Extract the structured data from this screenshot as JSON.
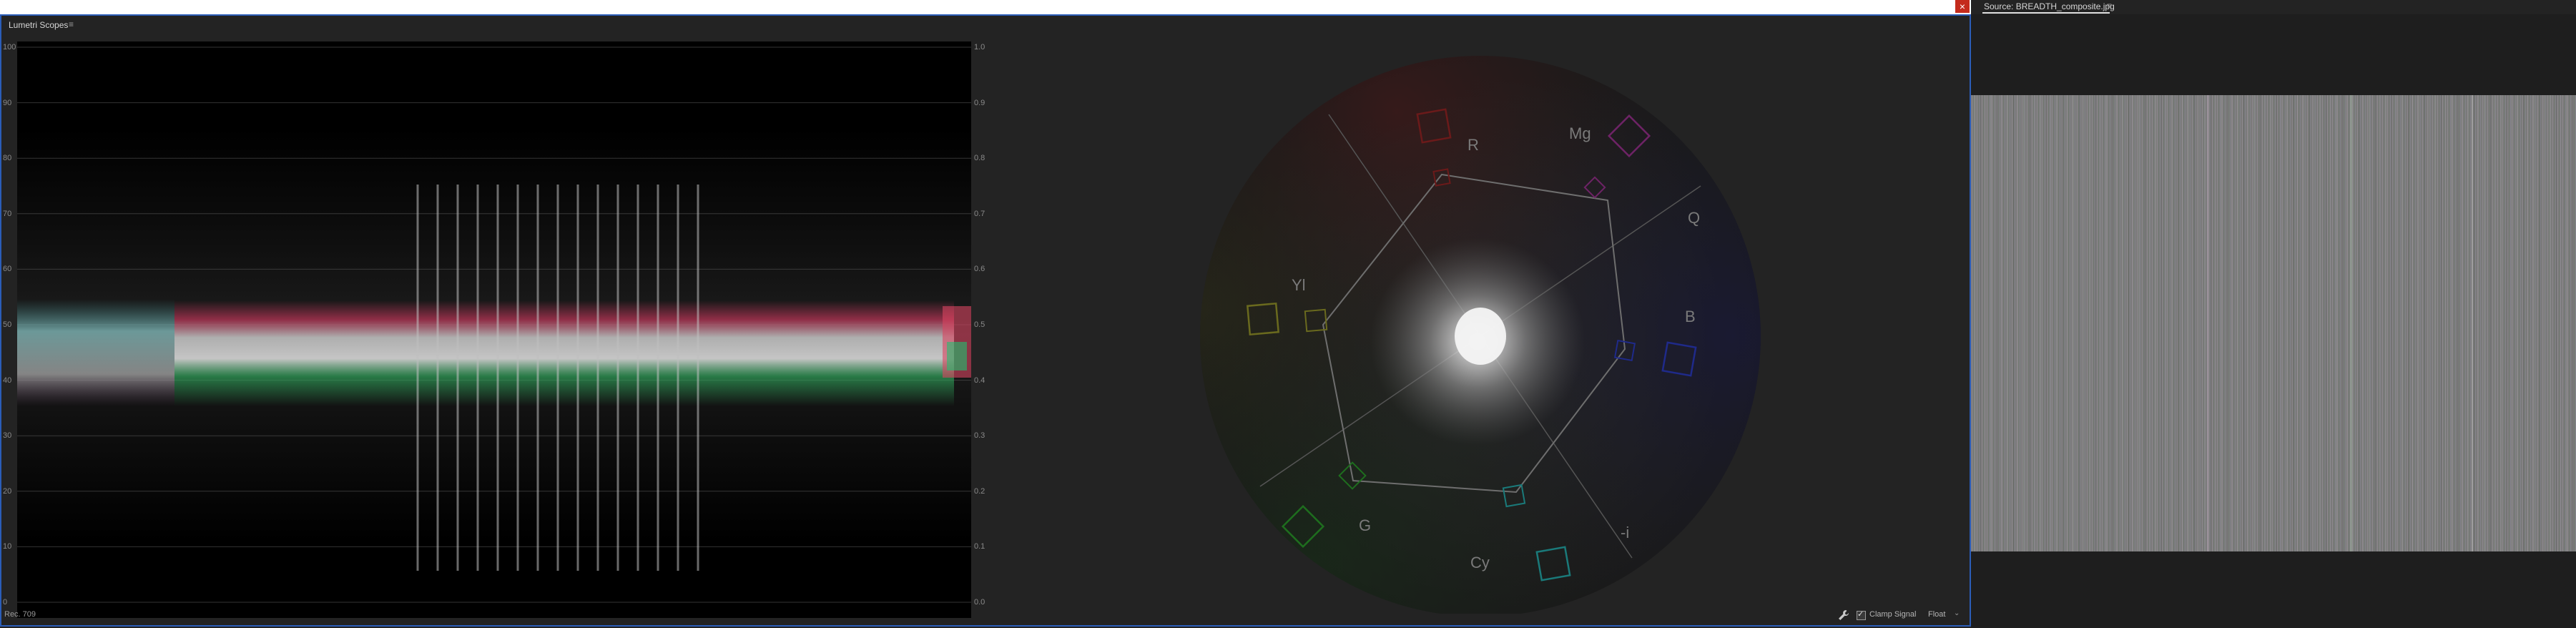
{
  "window": {
    "close_glyph": "×"
  },
  "lumetri": {
    "tab_title": "Lumetri Scopes",
    "tab_menu_glyph": "≡",
    "waveform": {
      "left_scale": [
        "100",
        "90",
        "80",
        "70",
        "60",
        "50",
        "40",
        "30",
        "20",
        "10",
        "0"
      ],
      "right_scale": [
        "1.0",
        "0.9",
        "0.8",
        "0.7",
        "0.6",
        "0.5",
        "0.4",
        "0.3",
        "0.2",
        "0.1",
        "0.0"
      ]
    },
    "vectorscope": {
      "labels": {
        "r": "R",
        "mg": "Mg",
        "q": "Q",
        "b": "B",
        "yl": "Yl",
        "g": "G",
        "cy": "Cy",
        "neg_i": "-i"
      }
    },
    "footer": {
      "rec": "Rec. 709",
      "wrench_icon": "wrench-icon",
      "clamp_signal_label": "Clamp Signal",
      "clamp_signal_checked": true,
      "float_select": "Float"
    }
  },
  "source": {
    "tab_title": "Source: BREADTH_composite.jpg",
    "tab_menu_glyph": "≡"
  },
  "colors": {
    "accent_blue": "#2b5db8",
    "close_red": "#c42b1c",
    "panel_bg": "#232323"
  }
}
